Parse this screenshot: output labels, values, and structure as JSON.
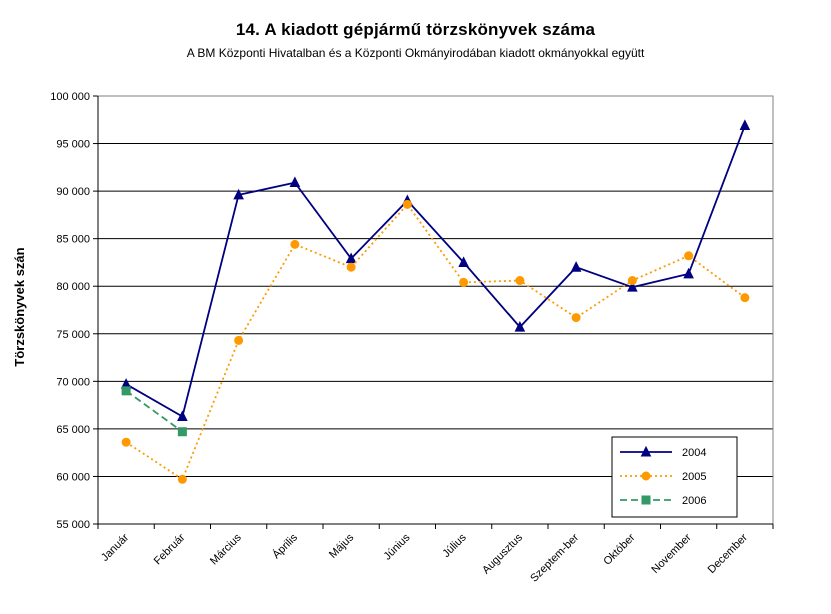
{
  "chart_data": {
    "type": "line",
    "title": "14. A  kiadott gépjármű  törzskönyvek száma",
    "subtitle": "A BM Központi Hivatalban és a Központi Okmányirodában kiadott okmányokkal együtt",
    "ylabel": "Törzskönyvek szán",
    "xlabel": "",
    "categories": [
      "Január",
      "Február",
      "Március",
      "Április",
      "Május",
      "Június",
      "Július",
      "Augusztus",
      "Szeptem-ber",
      "Október",
      "November",
      "December"
    ],
    "ylim": [
      55000,
      100000
    ],
    "yticks": [
      55000,
      60000,
      65000,
      70000,
      75000,
      80000,
      85000,
      90000,
      95000,
      100000
    ],
    "ytick_labels": [
      "55 000",
      "60 000",
      "65 000",
      "70 000",
      "75 000",
      "80 000",
      "85 000",
      "90 000",
      "95 000",
      "100 000"
    ],
    "grid": "horizontal",
    "legend_position": "bottom-right",
    "series": [
      {
        "name": "2004",
        "color": "#000080",
        "marker": "triangle",
        "dash": "solid",
        "values": [
          69700,
          66300,
          89600,
          90900,
          82900,
          89000,
          82500,
          75700,
          82000,
          79900,
          81300,
          96900
        ]
      },
      {
        "name": "2005",
        "color": "#ff9900",
        "marker": "circle",
        "dash": "dotted",
        "values": [
          63600,
          59700,
          74300,
          84400,
          82000,
          88600,
          80400,
          80600,
          76700,
          80600,
          83200,
          78800
        ]
      },
      {
        "name": "2006",
        "color": "#339966",
        "marker": "square",
        "dash": "dashed",
        "values": [
          69000,
          64700,
          null,
          null,
          null,
          null,
          null,
          null,
          null,
          null,
          null,
          null
        ]
      }
    ]
  }
}
